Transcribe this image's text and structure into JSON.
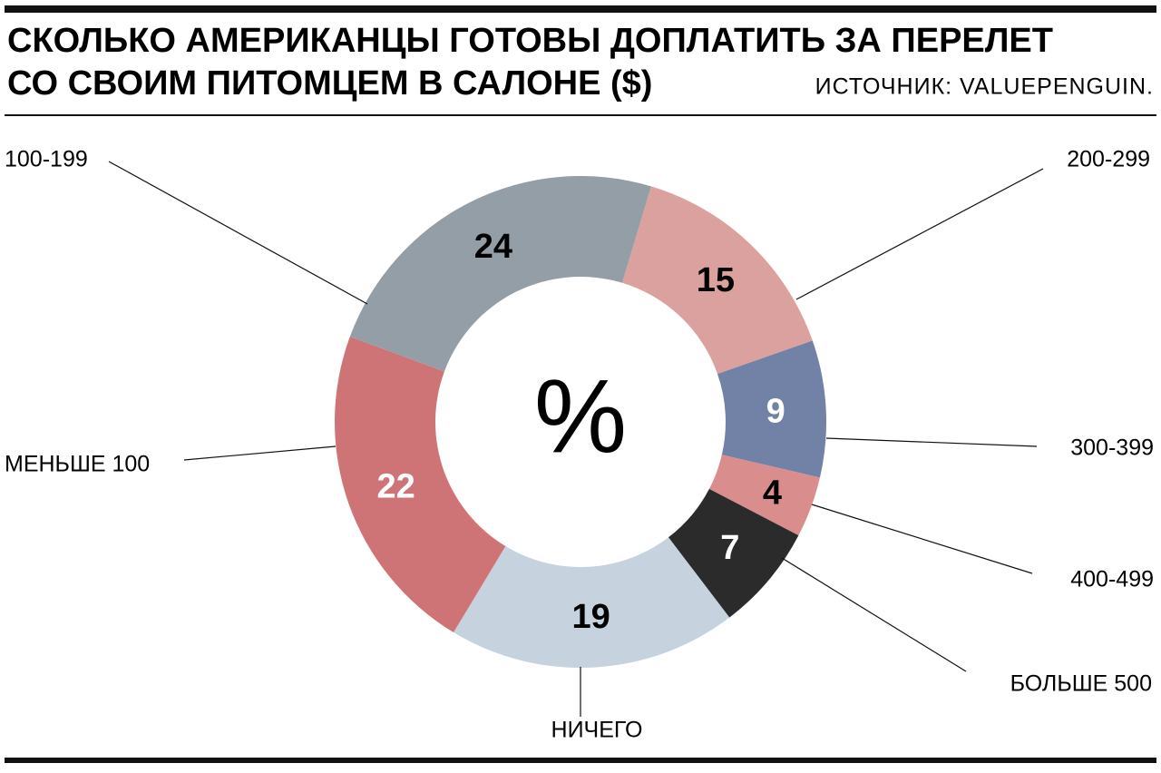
{
  "chart_data": {
    "type": "donut",
    "title": [
      "СКОЛЬКО АМЕРИКАНЦЫ ГОТОВЫ ДОПЛАТИТЬ ЗА ПЕРЕЛЕТ",
      "СО СВОИМ ПИТОМЦЕМ В САЛОНЕ ($)"
    ],
    "source": "ИСТОЧНИК: VALUEPENGUIN.",
    "center_label": "%",
    "categories": [
      "200-299",
      "300-399",
      "400-499",
      "БОЛЬШЕ 500",
      "НИЧЕГО",
      "МЕНЬШЕ 100",
      "100-199"
    ],
    "values": [
      15,
      9,
      4,
      7,
      19,
      22,
      24
    ],
    "colors": [
      "#dba19f",
      "#7182a6",
      "#d98d8c",
      "#2b2b2b",
      "#c6d2de",
      "#cf7476",
      "#949ea6"
    ],
    "label_colors": [
      "#000000",
      "#ffffff",
      "#000000",
      "#ffffff",
      "#000000",
      "#ffffff",
      "#000000"
    ]
  }
}
